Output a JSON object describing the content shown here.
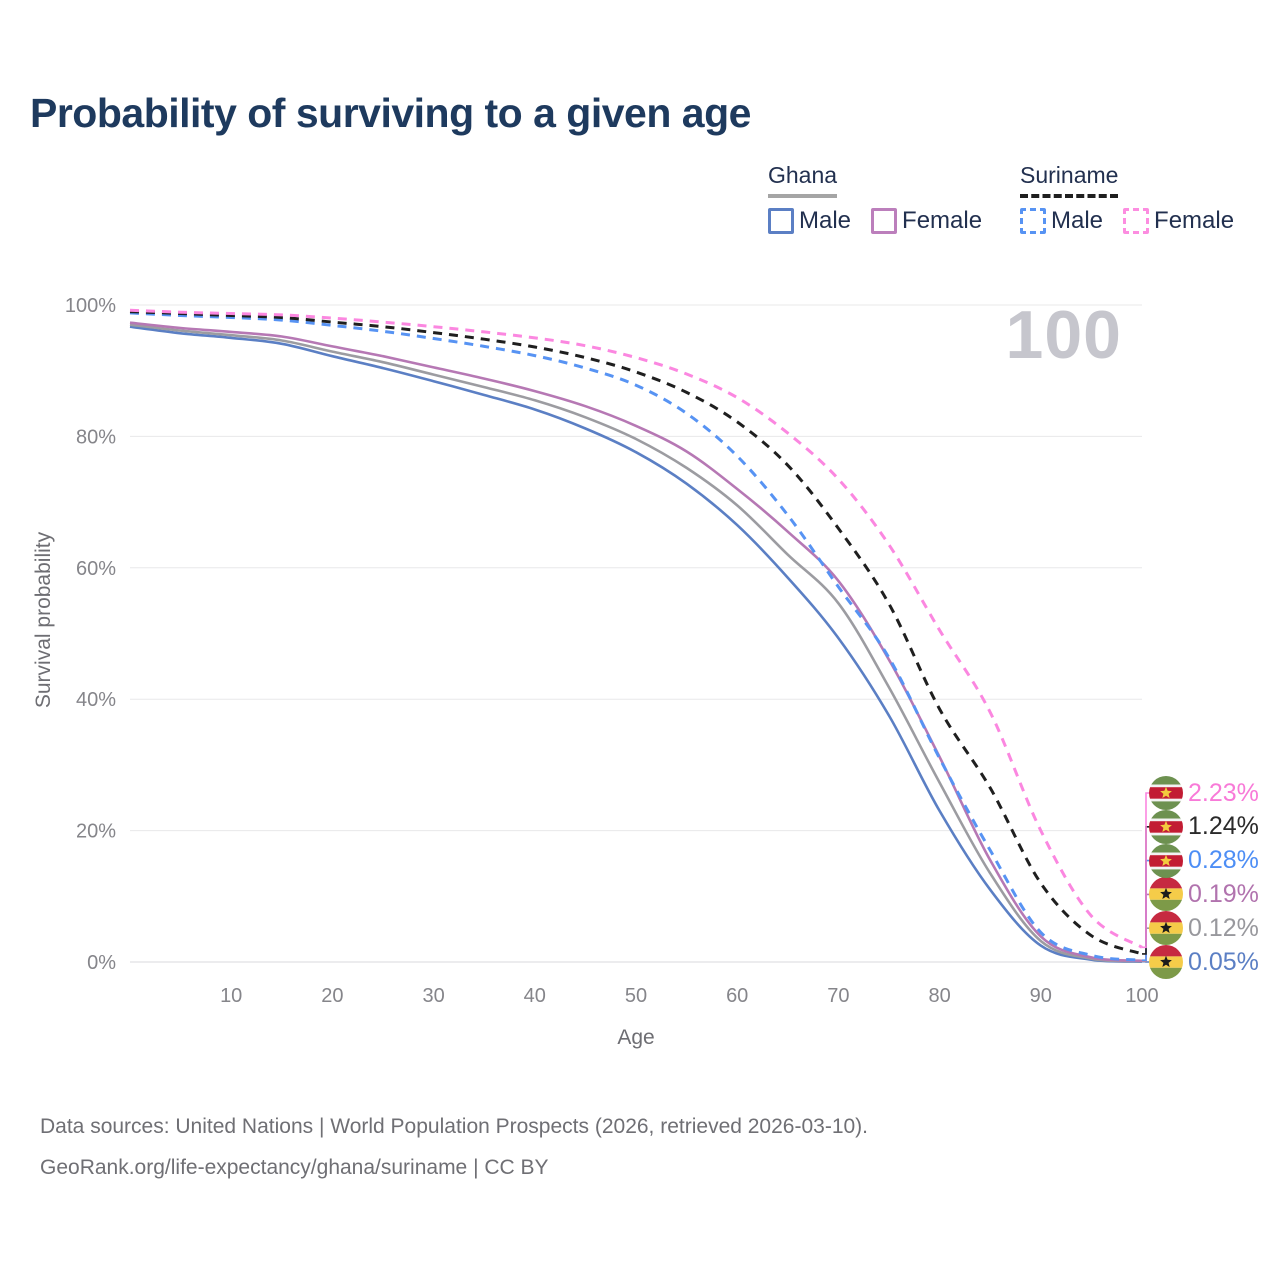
{
  "title": "Probability of surviving to a given age",
  "watermark": "100",
  "legend": {
    "ghana": {
      "label": "Ghana",
      "male": "Male",
      "female": "Female"
    },
    "suriname": {
      "label": "Suriname",
      "male": "Male",
      "female": "Female"
    }
  },
  "colors": {
    "title": "#1e3a5e",
    "ghana_male": "#5b7fc4",
    "ghana_female": "#b678b4",
    "ghana_both": "#9c9ca1",
    "suriname_male": "#5793f3",
    "suriname_female": "#fb87e0",
    "suriname_both": "#1f1f1f",
    "grid": "#e8e8ea",
    "axis_text": "#85858a"
  },
  "chart_data": {
    "type": "line",
    "title": "Probability of surviving to a given age",
    "xlabel": "Age",
    "ylabel": "Survival probability",
    "xlim": [
      0,
      100
    ],
    "ylim": [
      0,
      100
    ],
    "xticks": [
      10,
      20,
      30,
      40,
      50,
      60,
      70,
      80,
      90,
      100
    ],
    "yticks": [
      0,
      20,
      40,
      60,
      80,
      100
    ],
    "ytick_suffix": "%",
    "grid": "horizontal",
    "legend_position": "top-right",
    "x": [
      0,
      5,
      10,
      15,
      20,
      25,
      30,
      35,
      40,
      45,
      50,
      55,
      60,
      65,
      70,
      75,
      80,
      85,
      90,
      95,
      100
    ],
    "series": [
      {
        "name": "Ghana Male",
        "country": "Ghana",
        "sex": "Male",
        "color": "#5b7fc4",
        "dash": false,
        "flag": "ghana",
        "end_label": "0.05%",
        "label_color": "#5b7fc4",
        "row": 5,
        "values": [
          96.7,
          95.7,
          95.0,
          94.1,
          92.2,
          90.4,
          88.4,
          86.3,
          84.1,
          81.2,
          77.6,
          72.8,
          66.5,
          58.5,
          49.3,
          37.5,
          23.0,
          11.0,
          2.5,
          0.35,
          0.05
        ]
      },
      {
        "name": "Ghana",
        "country": "Ghana",
        "sex": "Both",
        "color": "#9c9ca1",
        "dash": false,
        "flag": "ghana",
        "end_label": "0.12%",
        "label_color": "#98989d",
        "row": 4,
        "values": [
          97.0,
          96.1,
          95.4,
          94.6,
          92.9,
          91.3,
          89.4,
          87.5,
          85.5,
          82.9,
          79.6,
          75.2,
          69.5,
          62.0,
          54.6,
          41.8,
          27.3,
          13.5,
          3.2,
          0.5,
          0.12
        ]
      },
      {
        "name": "Ghana Female",
        "country": "Ghana",
        "sex": "Female",
        "color": "#b678b4",
        "dash": false,
        "flag": "ghana",
        "end_label": "0.19%",
        "label_color": "#b173ae",
        "row": 3,
        "values": [
          97.3,
          96.5,
          95.9,
          95.2,
          93.7,
          92.2,
          90.5,
          88.8,
          86.9,
          84.6,
          81.6,
          77.7,
          72.0,
          65.5,
          58.0,
          46.0,
          31.2,
          15.5,
          3.9,
          0.7,
          0.19
        ]
      },
      {
        "name": "Suriname Male",
        "country": "Suriname",
        "sex": "Male",
        "color": "#5793f3",
        "dash": true,
        "flag": "suriname",
        "end_label": "0.28%",
        "label_color": "#4d8ef5",
        "row": 2,
        "values": [
          98.8,
          98.4,
          98.1,
          97.7,
          96.9,
          96.0,
          94.9,
          93.7,
          92.3,
          90.4,
          87.8,
          83.5,
          77.0,
          68.0,
          57.1,
          46.3,
          31.0,
          17.0,
          4.5,
          1.0,
          0.28
        ]
      },
      {
        "name": "Suriname",
        "country": "Suriname",
        "sex": "Both",
        "color": "#1f1f1f",
        "dash": true,
        "flag": "suriname",
        "end_label": "1.24%",
        "label_color": "#2a2a2a",
        "row": 1,
        "values": [
          99.0,
          98.7,
          98.4,
          98.1,
          97.4,
          96.7,
          95.8,
          94.8,
          93.6,
          92.0,
          89.8,
          86.7,
          82.2,
          75.6,
          66.0,
          54.5,
          38.5,
          26.5,
          12.0,
          4.0,
          1.24
        ]
      },
      {
        "name": "Suriname Female",
        "country": "Suriname",
        "sex": "Female",
        "color": "#fb87e0",
        "dash": true,
        "flag": "suriname",
        "end_label": "2.23%",
        "label_color": "#f87ad8",
        "row": 0,
        "values": [
          99.2,
          98.9,
          98.7,
          98.5,
          98.0,
          97.4,
          96.7,
          95.9,
          95.0,
          93.8,
          92.0,
          89.5,
          85.9,
          80.5,
          73.5,
          63.5,
          50.5,
          38.0,
          20.0,
          7.0,
          2.23
        ]
      }
    ],
    "current_age_marker": "100"
  },
  "source": {
    "line1": "Data sources: United Nations | World Population Prospects (2026, retrieved 2026-03-10).",
    "line2": "GeoRank.org/life-expectancy/ghana/suriname | CC BY"
  }
}
